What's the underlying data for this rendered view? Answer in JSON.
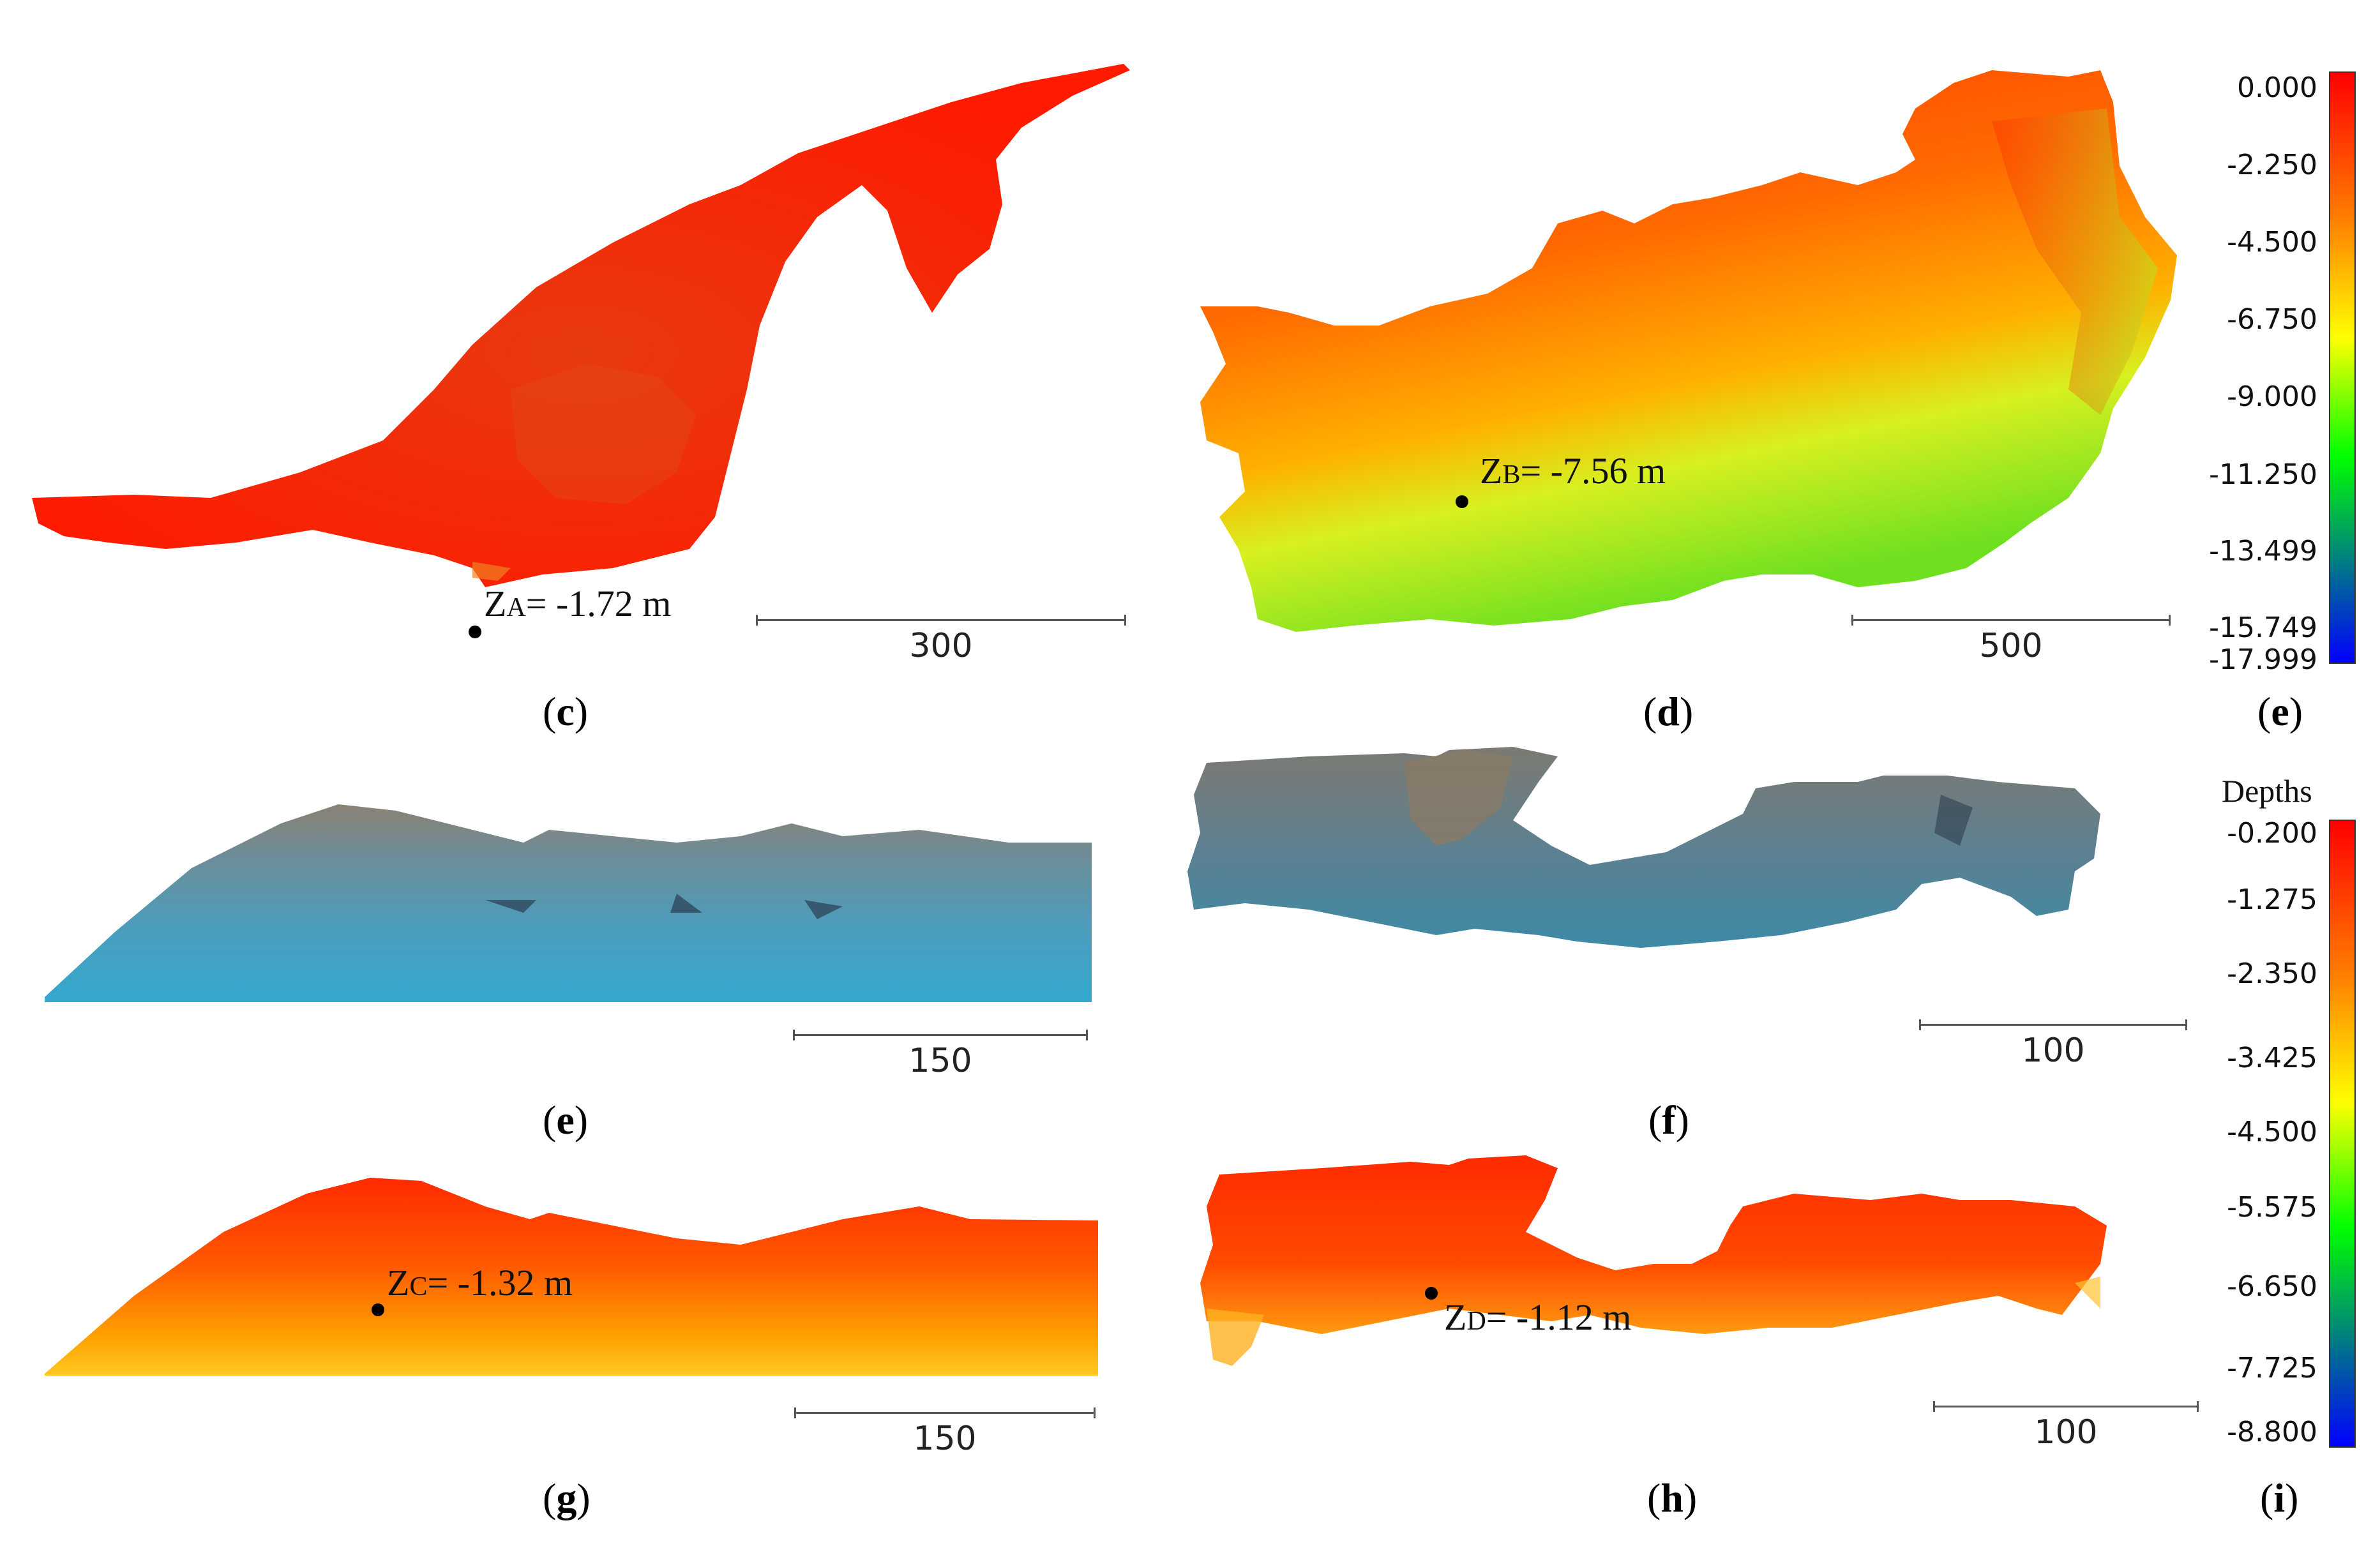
{
  "panels": {
    "c": {
      "caption_letter": "c",
      "z_main": "Z",
      "z_sub": "A",
      "z_value": "= -1.72 m",
      "scale_label": "300"
    },
    "d": {
      "caption_letter": "d",
      "z_main": "Z",
      "z_sub": "B",
      "z_value": "= -7.56 m",
      "scale_label": "500"
    },
    "e_cbar": {
      "caption_letter": "e"
    },
    "e": {
      "caption_letter": "e",
      "scale_label": "150"
    },
    "f": {
      "caption_letter": "f",
      "scale_label": "100"
    },
    "g": {
      "caption_letter": "g",
      "z_main": "Z",
      "z_sub": "C",
      "z_value": "= -1.32 m",
      "scale_label": "150"
    },
    "h": {
      "caption_letter": "h",
      "z_main": "Z",
      "z_sub": "D",
      "z_value": "= -1.12 m",
      "scale_label": "100"
    },
    "i_cbar": {
      "caption_letter": "i"
    }
  },
  "colorbar_top": {
    "ticks": [
      "0.000",
      "-2.250",
      "-4.500",
      "-6.750",
      "-9.000",
      "-11.250",
      "-13.499",
      "-15.749",
      "-17.999"
    ],
    "colors": [
      "#ff0000",
      "#ff8000",
      "#ffff00",
      "#00ff00",
      "#0000ff"
    ]
  },
  "colorbar_bottom": {
    "title": "Depths",
    "ticks": [
      "-0.200",
      "-1.275",
      "-2.350",
      "-3.425",
      "-4.500",
      "-5.575",
      "-6.650",
      "-7.725",
      "-8.800"
    ],
    "colors": [
      "#ff0000",
      "#ff8000",
      "#ffff00",
      "#00ff00",
      "#0000ff"
    ]
  },
  "colors": {
    "red_surface": "#f52a0a",
    "orange_surface": "#ff7a12",
    "yellow_green": "#9ee61a",
    "rgb_cloud_top": "#8f8a7c",
    "rgb_cloud_bottom": "#3aa0c6"
  }
}
